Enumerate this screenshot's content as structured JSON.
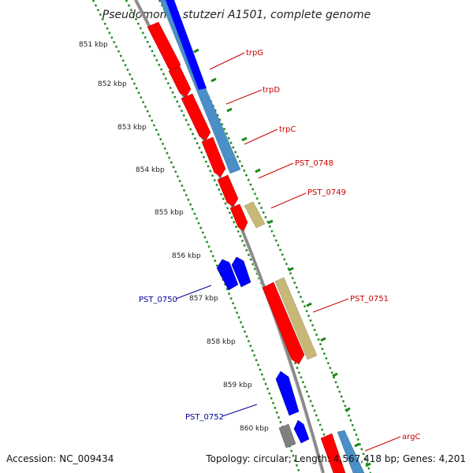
{
  "title": "Pseudomonas stutzeri A1501, complete genome",
  "footer": {
    "accession": "Accession: NC_009434",
    "summary": "Topology: circular; Length: 4,567,418 bp; Genes: 4,201"
  },
  "ruler_labels": [
    "851 kbp",
    "852 kbp",
    "853 kbp",
    "854 kbp",
    "855 kbp",
    "856 kbp",
    "857 kbp",
    "858 kbp",
    "859 kbp",
    "860 kbp"
  ],
  "gene_labels": {
    "trpG": "trpG",
    "trpD": "trpD",
    "trpC": "trpC",
    "pst0748": "PST_0748",
    "pst0749": "PST_0749",
    "pst0751": "PST_0751",
    "argC": "argC",
    "pst0750": "PST_0750",
    "pst0752": "PST_0752"
  },
  "colors": {
    "forward_gene": "#ff0000",
    "reverse_gene": "#0000ff",
    "forward_cds": "#4a8fc8",
    "reverse_cds": "#c8b878",
    "other_feature": "#808080",
    "backbone": "#888888",
    "ruler_ticks": "#1a8a1a",
    "forward_label": "#cc0000",
    "reverse_label": "#000099"
  }
}
